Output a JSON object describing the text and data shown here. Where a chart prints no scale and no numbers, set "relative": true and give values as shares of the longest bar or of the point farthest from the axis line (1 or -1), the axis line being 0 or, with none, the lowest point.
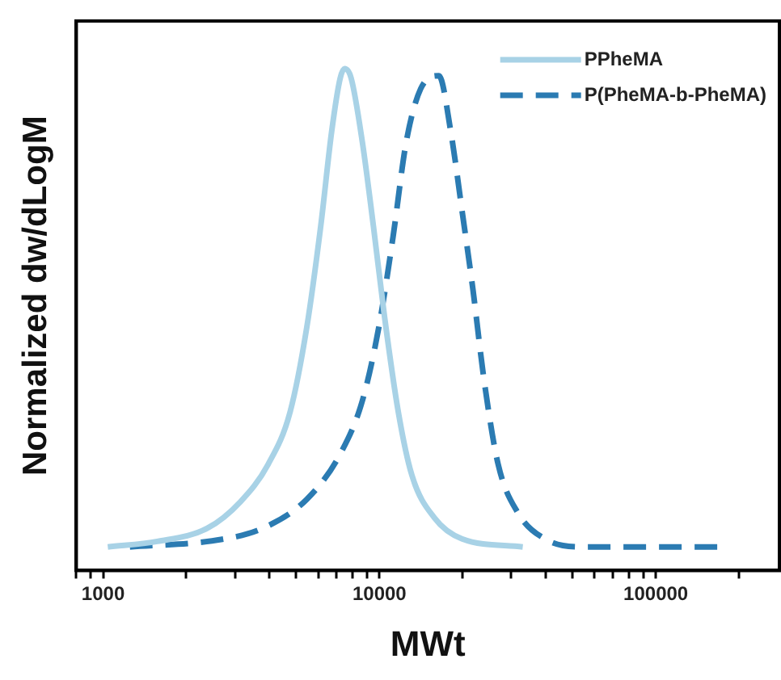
{
  "chart_data": {
    "type": "line",
    "xlabel": "MWt",
    "ylabel": "Normalized dw/dLogM",
    "log": "x",
    "relative": true,
    "legend": "top right",
    "marker": "none",
    "grid": false,
    "xlim": [
      800,
      280000
    ],
    "xticks": [
      {
        "value": 800,
        "label": null
      },
      {
        "value": 900,
        "label": null
      },
      1000,
      {
        "value": 2000,
        "label": null
      },
      {
        "value": 3000,
        "label": null
      },
      {
        "value": 4000,
        "label": null
      },
      {
        "value": 5000,
        "label": null
      },
      {
        "value": 6000,
        "label": null
      },
      {
        "value": 7000,
        "label": null
      },
      {
        "value": 8000,
        "label": null
      },
      {
        "value": 9000,
        "label": null
      },
      10000,
      {
        "value": 20000,
        "label": null
      },
      {
        "value": 30000,
        "label": null
      },
      {
        "value": 40000,
        "label": null
      },
      {
        "value": 50000,
        "label": null
      },
      {
        "value": 60000,
        "label": null
      },
      {
        "value": 70000,
        "label": null
      },
      {
        "value": 80000,
        "label": null
      },
      {
        "value": 90000,
        "label": null
      },
      100000,
      {
        "value": 200000,
        "label": null
      }
    ],
    "series": [
      {
        "name": "PPheMA",
        "color": "#a8d2e6",
        "line_style": "solid",
        "x": [
          1040,
          1570,
          2380,
          3140,
          3950,
          4750,
          5460,
          6130,
          6720,
          7210,
          7480,
          7900,
          8670,
          9510,
          10430,
          11700,
          13100,
          15800,
          19900,
          33000
        ],
        "values": [
          0.047,
          0.058,
          0.084,
          0.137,
          0.211,
          0.316,
          0.485,
          0.686,
          0.876,
          0.981,
          1,
          0.981,
          0.854,
          0.686,
          0.506,
          0.316,
          0.19,
          0.105,
          0.063,
          0.047
        ]
      },
      {
        "name": "P(PheMA-b-PheMA)",
        "color": "#2b7bb2",
        "line_style": "dashed",
        "x": [
          1250,
          2610,
          3780,
          5460,
          7210,
          8670,
          9950,
          11200,
          12500,
          14100,
          16400,
          18100,
          19900,
          21800,
          23900,
          26900,
          31600,
          39700,
          54800,
          174000
        ],
        "values": [
          0.047,
          0.061,
          0.084,
          0.142,
          0.232,
          0.338,
          0.485,
          0.665,
          0.854,
          0.96,
          0.986,
          0.876,
          0.717,
          0.559,
          0.38,
          0.211,
          0.116,
          0.063,
          0.047,
          0.047
        ]
      }
    ]
  }
}
